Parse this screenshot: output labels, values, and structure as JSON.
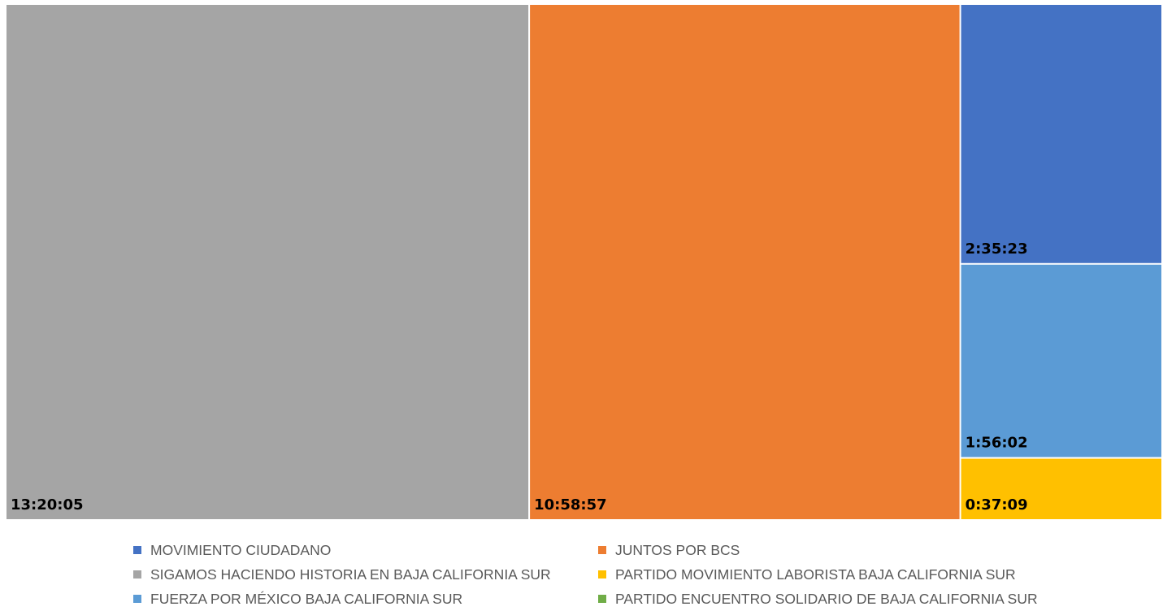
{
  "chart_data": {
    "type": "treemap",
    "title": "",
    "items": [
      {
        "name": "SIGAMOS HACIENDO HISTORIA EN BAJA CALIFORNIA SUR",
        "label": "13:20:05",
        "seconds": 48005,
        "color": "#A5A5A5"
      },
      {
        "name": "JUNTOS POR BCS",
        "label": "10:58:57",
        "seconds": 39537,
        "color": "#ED7D31"
      },
      {
        "name": "MOVIMIENTO CIUDADANO",
        "label": "2:35:23",
        "seconds": 9323,
        "color": "#4472C4"
      },
      {
        "name": "FUERZA POR MÉXICO BAJA CALIFORNIA SUR",
        "label": "1:56:02",
        "seconds": 6962,
        "color": "#5B9BD5"
      },
      {
        "name": "PARTIDO MOVIMIENTO LABORISTA BAJA CALIFORNIA SUR",
        "label": "0:37:09",
        "seconds": 2229,
        "color": "#FFC000"
      }
    ],
    "legend": [
      {
        "label": "MOVIMIENTO CIUDADANO",
        "color": "#4472C4"
      },
      {
        "label": "JUNTOS POR BCS",
        "color": "#ED7D31"
      },
      {
        "label": "SIGAMOS HACIENDO HISTORIA EN BAJA CALIFORNIA SUR",
        "color": "#A5A5A5"
      },
      {
        "label": "PARTIDO MOVIMIENTO LABORISTA BAJA CALIFORNIA SUR",
        "color": "#FFC000"
      },
      {
        "label": "FUERZA POR MÉXICO BAJA CALIFORNIA SUR",
        "color": "#5B9BD5"
      },
      {
        "label": "PARTIDO ENCUENTRO SOLIDARIO DE BAJA CALIFORNIA SUR",
        "color": "#70AD47"
      }
    ],
    "legend_position": "bottom"
  }
}
